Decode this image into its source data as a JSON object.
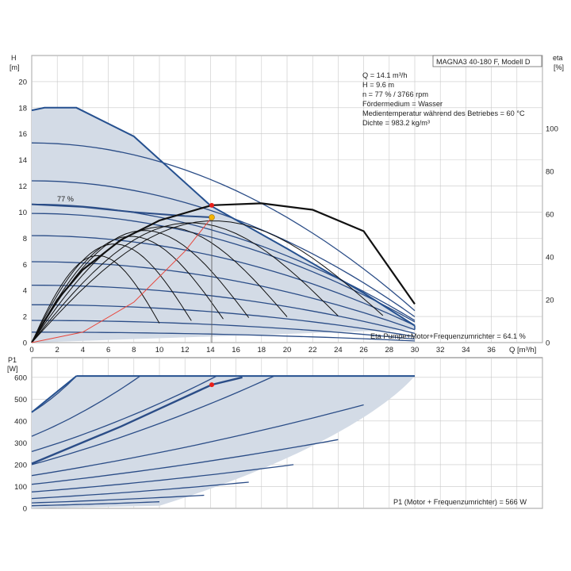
{
  "colors": {
    "envelope_fill": "#d3dbe6",
    "envelope_stroke": "#25508f",
    "curve_blue": "#2b4d87",
    "curve_black": "#111111",
    "system_curve": "#e8463c",
    "grid": "#c8c8c8",
    "duty_point_top": "#f4b400",
    "duty_point": "#e8201a"
  },
  "model_label": "MAGNA3 40-180 F, Modell D",
  "info_lines": [
    "Q = 14.1 m³/h",
    "H = 9.6 m",
    "n = 77 % / 3766 rpm",
    "Fördermedium = Wasser",
    "Medientemperatur während des Betriebes = 60 °C",
    "Dichte = 983.2 kg/m³"
  ],
  "speed_label": "77 %",
  "eta_summary": "Eta Pumpe+Motor+Frequenzumrichter = 64.1 %",
  "p1_summary": "P1 (Motor + Frequenzumrichter) = 566 W",
  "chart_data": [
    {
      "type": "line",
      "y_title": "H",
      "y_unit": "[m]",
      "x_title": "Q [m³/h]",
      "xlim": [
        0,
        40
      ],
      "ylim": [
        0,
        22
      ],
      "x_ticks": [
        "0",
        "2",
        "4",
        "6",
        "8",
        "10",
        "12",
        "14",
        "16",
        "18",
        "20",
        "22",
        "24",
        "26",
        "28",
        "30",
        "32",
        "34",
        "36"
      ],
      "y_ticks": [
        "0",
        "2",
        "4",
        "6",
        "8",
        "10",
        "12",
        "14",
        "16",
        "18",
        "20"
      ],
      "grid": true,
      "max_curve": [
        [
          0,
          17.8
        ],
        [
          1,
          18
        ],
        [
          3.5,
          18
        ],
        [
          8,
          15.8
        ],
        [
          14,
          10.5
        ],
        [
          20,
          7.2
        ],
        [
          26,
          3.8
        ],
        [
          30,
          1.3
        ]
      ],
      "speed_curves": [
        {
          "shutoff_head": 15.3,
          "end_q": 30.0
        },
        {
          "shutoff_head": 12.4,
          "end_q": 30.0
        },
        {
          "shutoff_head": 10.6,
          "end_q": 30.0
        },
        {
          "shutoff_head": 9.9,
          "end_q": 30.0
        },
        {
          "shutoff_head": 8.2,
          "end_q": 30.0
        },
        {
          "shutoff_head": 6.2,
          "end_q": 30.0
        },
        {
          "shutoff_head": 4.4,
          "end_q": 30.0
        },
        {
          "shutoff_head": 2.9,
          "end_q": 30.0
        },
        {
          "shutoff_head": 1.7,
          "end_q": 30.0
        },
        {
          "shutoff_head": 0.8,
          "end_q": 30.0
        }
      ],
      "highlight_curve": [
        [
          0,
          10.6
        ],
        [
          4,
          10.4
        ],
        [
          8,
          10.0
        ],
        [
          12,
          9.7
        ],
        [
          14.1,
          9.6
        ]
      ],
      "system_curve": [
        [
          0,
          0
        ],
        [
          4,
          0.8
        ],
        [
          8,
          3.1
        ],
        [
          12,
          7.0
        ],
        [
          14.1,
          9.6
        ]
      ],
      "duty_point": {
        "q": 14.1,
        "h": 9.6
      },
      "eta_axis": {
        "title": "eta",
        "unit": "[%]",
        "ticks": [
          "0",
          "20",
          "40",
          "60",
          "80",
          "100"
        ],
        "ylim": [
          0,
          134
        ]
      },
      "eta_max_curve": [
        [
          0,
          0
        ],
        [
          2,
          20
        ],
        [
          4,
          34
        ],
        [
          7,
          48
        ],
        [
          10,
          57
        ],
        [
          14.1,
          64.1
        ],
        [
          18,
          65
        ],
        [
          22,
          62
        ],
        [
          26,
          52
        ],
        [
          30,
          18
        ]
      ],
      "eta_small_curves": [
        {
          "end_q": 10,
          "peak": 45
        },
        {
          "end_q": 12.5,
          "peak": 51
        },
        {
          "end_q": 15,
          "peak": 55
        },
        {
          "end_q": 17,
          "peak": 58
        },
        {
          "end_q": 20,
          "peak": 60
        },
        {
          "end_q": 24,
          "peak": 62
        },
        {
          "end_q": 27.5,
          "peak": 63
        }
      ],
      "eta_point": {
        "q": 14.1,
        "eta": 64.1
      }
    },
    {
      "type": "line",
      "y_title": "P1",
      "y_unit": "[W]",
      "xlim": [
        0,
        40
      ],
      "ylim": [
        0,
        690
      ],
      "y_ticks": [
        "0",
        "100",
        "200",
        "300",
        "400",
        "500",
        "600"
      ],
      "grid": true,
      "max_power": 606,
      "power_curves": [
        {
          "p0": 440,
          "q_end": 3.5,
          "p_end": 606
        },
        {
          "p0": 330,
          "q_end": 8.5,
          "p_end": 606
        },
        {
          "p0": 260,
          "q_end": 14.5,
          "p_end": 606
        },
        {
          "p0": 200,
          "q_end": 19,
          "p_end": 606
        },
        {
          "p0": 150,
          "q_end": 26,
          "p_end": 474
        },
        {
          "p0": 110,
          "q_end": 24,
          "p_end": 315
        },
        {
          "p0": 75,
          "q_end": 20.5,
          "p_end": 200
        },
        {
          "p0": 45,
          "q_end": 17,
          "p_end": 120
        },
        {
          "p0": 25,
          "q_end": 13.5,
          "p_end": 60
        },
        {
          "p0": 12,
          "q_end": 10,
          "p_end": 30
        }
      ],
      "highlight_curve": [
        [
          0,
          205
        ],
        [
          7,
          375
        ],
        [
          14.1,
          566
        ],
        [
          16.5,
          600
        ]
      ],
      "power_point": {
        "q": 14.1,
        "p": 566
      }
    }
  ]
}
